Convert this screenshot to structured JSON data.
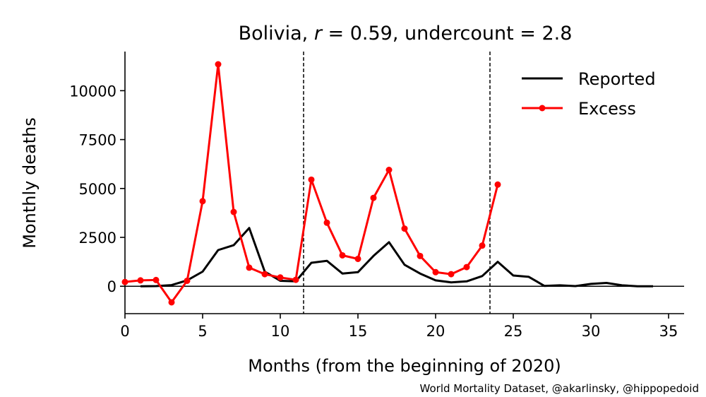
{
  "chart_data": {
    "type": "line",
    "title_parts": {
      "country": "Bolivia, ",
      "r_symbol": "r",
      "r_text": " = 0.59, undercount = 2.8"
    },
    "xlabel": "Months (from the beginning of 2020)",
    "ylabel": "Monthly deaths",
    "credit": "World Mortality Dataset, @akarlinsky, @hippopedoid",
    "xlim": [
      0,
      36
    ],
    "ylim": [
      -1400,
      12000
    ],
    "x_ticks": [
      0,
      5,
      10,
      15,
      20,
      25,
      30,
      35
    ],
    "x_tick_labels": [
      "0",
      "5",
      "10",
      "15",
      "20",
      "25",
      "30",
      "35"
    ],
    "y_ticks": [
      0,
      2500,
      5000,
      7500,
      10000
    ],
    "y_tick_labels": [
      "0",
      "2500",
      "5000",
      "7500",
      "10000"
    ],
    "vlines": [
      11.5,
      23.5
    ],
    "hline": 0,
    "grid": false,
    "legend_position": "top-right",
    "series": [
      {
        "name": "Reported",
        "color": "#000000",
        "marker": false,
        "x": [
          1,
          2,
          3,
          4,
          5,
          6,
          7,
          8,
          9,
          10,
          11,
          12,
          13,
          14,
          15,
          16,
          17,
          18,
          19,
          20,
          21,
          22,
          23,
          24,
          25,
          26,
          27,
          28,
          29,
          30,
          31,
          32,
          33,
          34
        ],
        "values": [
          0,
          10,
          60,
          300,
          750,
          1850,
          2100,
          2980,
          750,
          280,
          250,
          1200,
          1300,
          650,
          720,
          1550,
          2250,
          1100,
          650,
          300,
          200,
          250,
          520,
          1250,
          550,
          480,
          20,
          50,
          10,
          120,
          170,
          50,
          0,
          0
        ]
      },
      {
        "name": "Excess",
        "color": "#ff0000",
        "marker": true,
        "x": [
          0,
          1,
          2,
          3,
          4,
          5,
          6,
          7,
          8,
          9,
          10,
          11,
          12,
          13,
          14,
          15,
          16,
          17,
          18,
          19,
          20,
          21,
          22,
          23,
          24
        ],
        "values": [
          220,
          300,
          320,
          -820,
          280,
          4350,
          11350,
          3800,
          950,
          620,
          450,
          330,
          5450,
          3250,
          1580,
          1400,
          4520,
          5950,
          2950,
          1550,
          720,
          620,
          980,
          2080,
          5200
        ]
      }
    ]
  }
}
